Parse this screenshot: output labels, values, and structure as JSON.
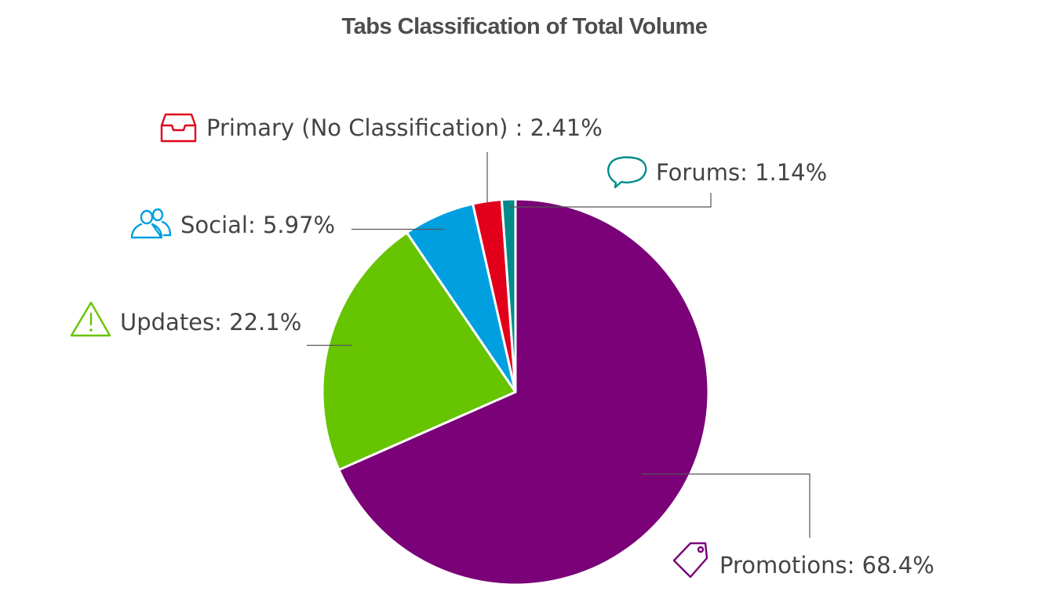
{
  "chart_data": {
    "type": "pie",
    "title": "Tabs Classification of Total Volume",
    "slices": [
      {
        "key": "promotions",
        "label": "Promotions",
        "value": 68.4,
        "display": "68.4%",
        "color": "#7a0177",
        "icon": "tag-icon"
      },
      {
        "key": "updates",
        "label": "Updates",
        "value": 22.1,
        "display": "22.1%",
        "color": "#66c400",
        "icon": "warning-icon"
      },
      {
        "key": "social",
        "label": "Social",
        "value": 5.97,
        "display": "5.97%",
        "color": "#009fe0",
        "icon": "people-icon"
      },
      {
        "key": "primary",
        "label": "Primary (No Classification) ",
        "value": 2.41,
        "display": "2.41%",
        "color": "#e2001a",
        "icon": "inbox-icon"
      },
      {
        "key": "forums",
        "label": "Forums",
        "value": 1.14,
        "display": "1.14%",
        "color": "#008b8b",
        "icon": "chat-bubble-icon"
      }
    ]
  }
}
